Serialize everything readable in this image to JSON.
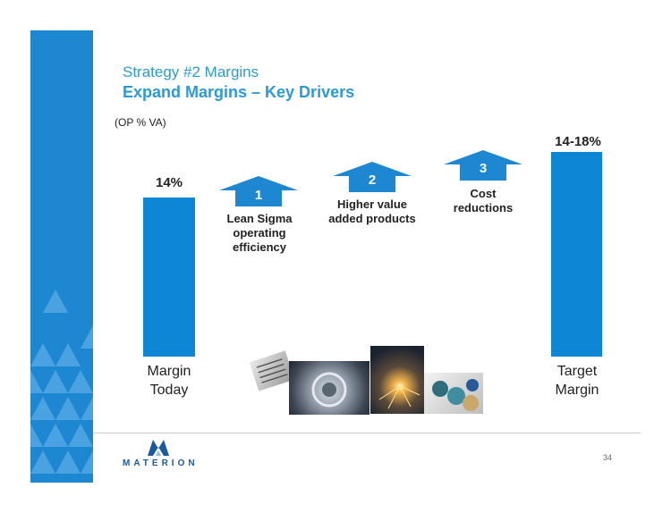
{
  "header": {
    "title": "Strategy #2 Margins",
    "subtitle": "Expand Margins – Key Drivers"
  },
  "unit_label": "(OP % VA)",
  "chart_data": {
    "type": "bar",
    "categories": [
      "Margin Today",
      "Target Margin"
    ],
    "values": [
      14,
      18
    ],
    "value_labels": [
      "14%",
      "14-18%"
    ],
    "colors": {
      "bar": "#0d86d6",
      "arrow": "#1e87d2"
    }
  },
  "bars": [
    {
      "label": "14%",
      "caption_line1": "Margin",
      "caption_line2": "Today"
    },
    {
      "label": "14-18%",
      "caption_line1": "Target",
      "caption_line2": "Margin"
    }
  ],
  "drivers": [
    {
      "number": "1",
      "line1": "Lean Sigma",
      "line2": "operating",
      "line3": "efficiency"
    },
    {
      "number": "2",
      "line1": "Higher value",
      "line2": "added products"
    },
    {
      "number": "3",
      "line1": "Cost",
      "line2": "reductions"
    }
  ],
  "footer": {
    "logo_text": "MATERION",
    "page_number": "34"
  },
  "colors": {
    "accent": "#2a9ad8",
    "band": "#1e87d2",
    "logo": "#1a5aa3"
  }
}
